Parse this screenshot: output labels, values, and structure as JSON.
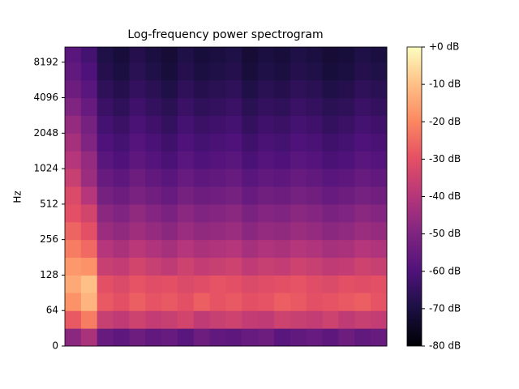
{
  "chart_data": {
    "type": "heatmap",
    "title": "Log-frequency power spectrogram",
    "ylabel": "Hz",
    "yscale": "symlog",
    "linthresh": 64,
    "colormap": "magma",
    "ylim": [
      0,
      11025
    ],
    "yticks": [
      0,
      64,
      128,
      256,
      512,
      1024,
      2048,
      4096,
      8192
    ],
    "y_bins": [
      0,
      32,
      64,
      91,
      128,
      181,
      256,
      362,
      512,
      724,
      1024,
      1448,
      2048,
      2896,
      4096,
      5793,
      8192,
      11025
    ],
    "zlim": [
      -80,
      0
    ],
    "zticks": [
      {
        "value": 0,
        "label": "+0 dB"
      },
      {
        "value": -10,
        "label": "-10 dB"
      },
      {
        "value": -20,
        "label": "-20 dB"
      },
      {
        "value": -30,
        "label": "-30 dB"
      },
      {
        "value": -40,
        "label": "-40 dB"
      },
      {
        "value": -50,
        "label": "-50 dB"
      },
      {
        "value": -60,
        "label": "-60 dB"
      },
      {
        "value": -70,
        "label": "-70 dB"
      },
      {
        "value": -80,
        "label": "-80 dB"
      }
    ],
    "z": [
      [
        -48,
        -42,
        -55,
        -57,
        -54,
        -56,
        -55,
        -58,
        -54,
        -56,
        -57,
        -55,
        -54,
        -58,
        -56,
        -55,
        -57,
        -54,
        -56,
        -55
      ],
      [
        -28,
        -22,
        -36,
        -38,
        -35,
        -37,
        -36,
        -34,
        -38,
        -36,
        -35,
        -37,
        -38,
        -35,
        -36,
        -37,
        -35,
        -38,
        -36,
        -37
      ],
      [
        -18,
        -12,
        -28,
        -30,
        -27,
        -29,
        -28,
        -30,
        -27,
        -29,
        -28,
        -30,
        -29,
        -27,
        -28,
        -30,
        -29,
        -28,
        -27,
        -29
      ],
      [
        -14,
        -10,
        -30,
        -32,
        -29,
        -31,
        -30,
        -32,
        -31,
        -29,
        -30,
        -32,
        -31,
        -30,
        -29,
        -31,
        -32,
        -30,
        -31,
        -30
      ],
      [
        -17,
        -18,
        -36,
        -37,
        -34,
        -36,
        -38,
        -35,
        -37,
        -36,
        -35,
        -38,
        -36,
        -37,
        -35,
        -36,
        -38,
        -37,
        -35,
        -36
      ],
      [
        -22,
        -25,
        -40,
        -42,
        -39,
        -41,
        -43,
        -40,
        -42,
        -41,
        -40,
        -43,
        -41,
        -42,
        -40,
        -41,
        -43,
        -42,
        -40,
        -41
      ],
      [
        -26,
        -30,
        -45,
        -47,
        -44,
        -46,
        -48,
        -45,
        -47,
        -46,
        -45,
        -48,
        -46,
        -47,
        -45,
        -46,
        -48,
        -47,
        -45,
        -46
      ],
      [
        -30,
        -34,
        -48,
        -50,
        -47,
        -49,
        -51,
        -48,
        -50,
        -49,
        -48,
        -51,
        -49,
        -50,
        -48,
        -49,
        -51,
        -50,
        -48,
        -49
      ],
      [
        -32,
        -40,
        -52,
        -54,
        -51,
        -53,
        -55,
        -52,
        -54,
        -53,
        -52,
        -55,
        -53,
        -54,
        -52,
        -53,
        -55,
        -54,
        -52,
        -53
      ],
      [
        -36,
        -45,
        -55,
        -57,
        -54,
        -56,
        -58,
        -55,
        -57,
        -56,
        -55,
        -58,
        -56,
        -57,
        -55,
        -56,
        -58,
        -57,
        -55,
        -56
      ],
      [
        -40,
        -46,
        -58,
        -60,
        -57,
        -59,
        -61,
        -58,
        -60,
        -59,
        -58,
        -61,
        -59,
        -60,
        -58,
        -59,
        -61,
        -60,
        -58,
        -59
      ],
      [
        -43,
        -50,
        -60,
        -62,
        -59,
        -61,
        -63,
        -60,
        -62,
        -61,
        -60,
        -63,
        -61,
        -62,
        -60,
        -61,
        -63,
        -62,
        -60,
        -61
      ],
      [
        -46,
        -52,
        -62,
        -64,
        -61,
        -63,
        -65,
        -62,
        -64,
        -63,
        -62,
        -65,
        -63,
        -64,
        -62,
        -63,
        -65,
        -64,
        -62,
        -63
      ],
      [
        -50,
        -55,
        -64,
        -66,
        -63,
        -65,
        -67,
        -64,
        -66,
        -65,
        -64,
        -67,
        -65,
        -66,
        -64,
        -65,
        -67,
        -66,
        -64,
        -65
      ],
      [
        -54,
        -58,
        -66,
        -68,
        -65,
        -67,
        -69,
        -66,
        -68,
        -67,
        -66,
        -69,
        -67,
        -68,
        -66,
        -67,
        -69,
        -68,
        -66,
        -67
      ],
      [
        -56,
        -60,
        -68,
        -70,
        -67,
        -69,
        -71,
        -68,
        -70,
        -69,
        -68,
        -71,
        -69,
        -70,
        -68,
        -69,
        -71,
        -70,
        -68,
        -69
      ],
      [
        -58,
        -62,
        -69,
        -71,
        -68,
        -70,
        -72,
        -69,
        -71,
        -70,
        -69,
        -72,
        -70,
        -71,
        -69,
        -70,
        -72,
        -71,
        -69,
        -70
      ]
    ]
  }
}
